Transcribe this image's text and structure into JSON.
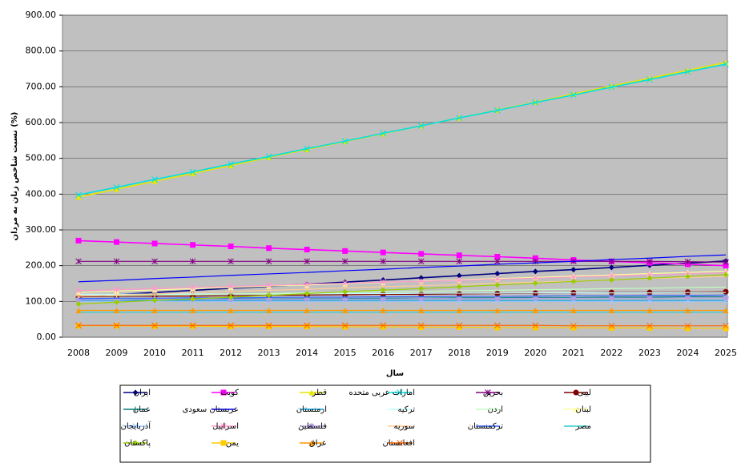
{
  "chart_data": {
    "type": "line",
    "y_label": "نسبت شاخص زنان به مردان (%)",
    "x_label": "سال",
    "categories": [
      "2008",
      "2009",
      "2010",
      "2011",
      "2012",
      "2013",
      "2014",
      "2015",
      "2016",
      "2017",
      "2018",
      "2019",
      "2020",
      "2021",
      "2022",
      "2023",
      "2024",
      "2025"
    ],
    "ylim": [
      0,
      900
    ],
    "yticks": [
      {
        "value": 0,
        "label": "0.00"
      },
      {
        "value": 100,
        "label": "100.00"
      },
      {
        "value": 200,
        "label": "200.00"
      },
      {
        "value": 300,
        "label": "300.00"
      },
      {
        "value": 400,
        "label": "400.00"
      },
      {
        "value": 500,
        "label": "500.00"
      },
      {
        "value": 600,
        "label": "600.00"
      },
      {
        "value": 700,
        "label": "700.00"
      },
      {
        "value": 800,
        "label": "800.00"
      },
      {
        "value": 900,
        "label": "900.00"
      }
    ],
    "grid": true,
    "series": [
      {
        "name": "ایران",
        "color": "#000080",
        "marker": "diamond",
        "values": [
          113,
          119,
          125,
          131,
          137,
          142,
          148,
          154,
          160,
          166,
          172,
          178,
          184,
          189,
          195,
          201,
          207,
          213
        ]
      },
      {
        "name": "کویت",
        "color": "#ff00ff",
        "marker": "square",
        "values": [
          270,
          266,
          262,
          258,
          254,
          249,
          245,
          241,
          237,
          233,
          229,
          225,
          221,
          216,
          212,
          208,
          204,
          200
        ]
      },
      {
        "name": "قطر",
        "color": "#e6e600",
        "marker": "triangle",
        "values": [
          392,
          414,
          436,
          458,
          480,
          503,
          525,
          547,
          569,
          591,
          613,
          635,
          657,
          680,
          702,
          724,
          746,
          768
        ]
      },
      {
        "name": "امارات عربی متحده",
        "color": "#00e0e0",
        "marker": "x",
        "values": [
          398,
          419,
          441,
          462,
          484,
          505,
          527,
          548,
          570,
          591,
          613,
          634,
          656,
          677,
          699,
          720,
          742,
          763
        ]
      },
      {
        "name": "بحرین",
        "color": "#800080",
        "marker": "star",
        "values": [
          212,
          212,
          212,
          212,
          212,
          212,
          212,
          212,
          212,
          212,
          212,
          212,
          212,
          212,
          212,
          212,
          211,
          210
        ]
      },
      {
        "name": "لیبی",
        "color": "#800000",
        "marker": "circle",
        "values": [
          113,
          114,
          115,
          115,
          116,
          117,
          118,
          119,
          120,
          120,
          121,
          122,
          123,
          124,
          125,
          125,
          126,
          127
        ]
      },
      {
        "name": "عمان",
        "color": "#008080",
        "marker": "plus",
        "values": [
          105,
          105,
          106,
          106,
          107,
          107,
          108,
          108,
          109,
          109,
          110,
          110,
          111,
          111,
          112,
          112,
          113,
          113
        ]
      },
      {
        "name": "عربستان سعودی",
        "color": "#0000ff",
        "marker": "none",
        "values": [
          155,
          159,
          164,
          168,
          173,
          177,
          181,
          186,
          190,
          195,
          199,
          204,
          208,
          212,
          217,
          221,
          226,
          230
        ]
      },
      {
        "name": "ارمنستان",
        "color": "#00a0e0",
        "marker": "none",
        "values": [
          103,
          103,
          103,
          103,
          103,
          103,
          103,
          103,
          103,
          103,
          103,
          103,
          103,
          103,
          103,
          103,
          103,
          103
        ]
      },
      {
        "name": "ترکیه",
        "color": "#c0ffff",
        "marker": "none",
        "values": [
          120,
          120,
          121,
          121,
          121,
          121,
          122,
          122,
          122,
          123,
          123,
          123,
          124,
          124,
          124,
          124,
          125,
          125
        ]
      },
      {
        "name": "اردن",
        "color": "#c0ffc0",
        "marker": "none",
        "values": [
          115,
          116,
          118,
          119,
          121,
          122,
          124,
          125,
          127,
          128,
          130,
          131,
          133,
          134,
          136,
          137,
          139,
          140
        ]
      },
      {
        "name": "لبنان",
        "color": "#ffffa0",
        "marker": "triangle",
        "values": [
          125,
          129,
          132,
          136,
          139,
          143,
          146,
          150,
          153,
          157,
          160,
          164,
          167,
          171,
          174,
          178,
          181,
          185
        ]
      },
      {
        "name": "آذربایجان",
        "color": "#a0c8ff",
        "marker": "x",
        "values": [
          100,
          100,
          100,
          100,
          100,
          100,
          100,
          100,
          100,
          100,
          100,
          100,
          100,
          100,
          100,
          100,
          100,
          100
        ]
      },
      {
        "name": "اسراییل",
        "color": "#ff99cc",
        "marker": "star",
        "values": [
          130,
          133,
          136,
          139,
          142,
          145,
          148,
          151,
          154,
          156,
          159,
          162,
          165,
          168,
          171,
          174,
          177,
          180
        ]
      },
      {
        "name": "فلسطین",
        "color": "#b0a0e0",
        "marker": "circle",
        "values": [
          105,
          105,
          106,
          106,
          106,
          106,
          107,
          107,
          107,
          108,
          108,
          108,
          109,
          109,
          109,
          109,
          110,
          110
        ]
      },
      {
        "name": "سوریه",
        "color": "#ffcc99",
        "marker": "plus",
        "values": [
          115,
          118,
          121,
          125,
          128,
          131,
          134,
          138,
          141,
          144,
          147,
          151,
          154,
          157,
          160,
          164,
          167,
          170
        ]
      },
      {
        "name": "ترکمنستان",
        "color": "#3366ff",
        "marker": "none",
        "values": [
          108,
          109,
          109,
          110,
          110,
          111,
          112,
          112,
          113,
          113,
          114,
          114,
          115,
          116,
          116,
          117,
          117,
          118
        ]
      },
      {
        "name": "مصر",
        "color": "#33cccc",
        "marker": "none",
        "values": [
          70,
          70,
          70,
          70,
          70,
          70,
          70,
          70,
          70,
          70,
          70,
          70,
          70,
          70,
          70,
          70,
          70,
          70
        ]
      },
      {
        "name": "پاکستان",
        "color": "#99cc00",
        "marker": "diamond",
        "values": [
          93,
          98,
          103,
          107,
          112,
          117,
          122,
          127,
          132,
          136,
          141,
          146,
          151,
          156,
          160,
          165,
          170,
          175
        ]
      },
      {
        "name": "یمن",
        "color": "#ffcc00",
        "marker": "square",
        "values": [
          32,
          32,
          31,
          31,
          30,
          30,
          30,
          29,
          29,
          28,
          28,
          27,
          27,
          27,
          26,
          26,
          25,
          25
        ]
      },
      {
        "name": "عراق",
        "color": "#ff9900",
        "marker": "triangle",
        "values": [
          75,
          75,
          75,
          75,
          75,
          75,
          75,
          75,
          75,
          75,
          75,
          75,
          75,
          75,
          75,
          75,
          75,
          75
        ]
      },
      {
        "name": "افغانستان",
        "color": "#ff6600",
        "marker": "x",
        "values": [
          33,
          33,
          33,
          33,
          33,
          33,
          33,
          33,
          33,
          33,
          33,
          33,
          33,
          32,
          32,
          32,
          32,
          32
        ]
      }
    ]
  }
}
